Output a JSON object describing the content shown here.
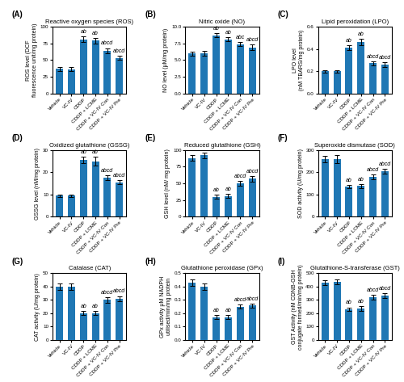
{
  "chart_data": [
    {
      "type": "bar",
      "label": "(A)",
      "title": "Reactive oxygen species (ROS)",
      "ylabel": "ROS level (DCF\nfluorescence unit/mg protein)",
      "categories": [
        "Vehicle",
        "VC-IV",
        "CDDP",
        "CDDP + LCME",
        "CDDP + VC-IV Con",
        "CDDP + VC-IV Pre"
      ],
      "values": [
        37,
        36,
        81,
        79,
        64,
        53
      ],
      "errors": [
        3,
        3,
        4,
        4,
        4,
        3
      ],
      "ylim": [
        0,
        100
      ],
      "yticks": [
        0,
        25,
        50,
        75,
        100
      ],
      "annotations": [
        {
          "category": "CDDP",
          "text": "ab"
        },
        {
          "category": "CDDP + LCME",
          "text": "ab"
        },
        {
          "category": "CDDP + VC-IV Con",
          "text": "abcd"
        },
        {
          "category": "CDDP + VC-IV Pre",
          "text": "abcd"
        }
      ]
    },
    {
      "type": "bar",
      "label": "(B)",
      "title": "Nitric oxide (NO)",
      "ylabel": "NO level (μM/mg protein)",
      "categories": [
        "Vehicle",
        "VC-IV",
        "CDDP",
        "CDDP + LCME",
        "CDDP + VC-IV Con",
        "CDDP + VC-IV Pre"
      ],
      "values": [
        6.0,
        6.0,
        8.7,
        8.1,
        7.4,
        6.9
      ],
      "errors": [
        0.3,
        0.4,
        0.3,
        0.3,
        0.3,
        0.4
      ],
      "ylim": [
        0.0,
        10.0
      ],
      "yticks": [
        0.0,
        2.5,
        5.0,
        7.5,
        10.0
      ],
      "annotations": [
        {
          "category": "CDDP",
          "text": "ab"
        },
        {
          "category": "CDDP + LCME",
          "text": "ab"
        },
        {
          "category": "CDDP + VC-IV Con",
          "text": "abc"
        },
        {
          "category": "CDDP + VC-IV Pre",
          "text": "abcd"
        }
      ]
    },
    {
      "type": "bar",
      "label": "(C)",
      "title": "Lipid peroxidation (LPO)",
      "ylabel": "LPO level\n(nM TBARS/mg protein)",
      "categories": [
        "Vehicle",
        "VC-IV",
        "CDDP",
        "CDDP + LCME",
        "CDDP + VC-IV Con",
        "CDDP + VC-IV Pre"
      ],
      "values": [
        0.2,
        0.2,
        0.41,
        0.46,
        0.27,
        0.26
      ],
      "errors": [
        0.01,
        0.01,
        0.02,
        0.03,
        0.02,
        0.02
      ],
      "ylim": [
        0.0,
        0.6
      ],
      "yticks": [
        0.0,
        0.2,
        0.4,
        0.6
      ],
      "annotations": [
        {
          "category": "CDDP",
          "text": "ab"
        },
        {
          "category": "CDDP + LCME",
          "text": "ab"
        },
        {
          "category": "CDDP + VC-IV Con",
          "text": "abcd"
        },
        {
          "category": "CDDP + VC-IV Pre",
          "text": "abcd"
        }
      ]
    },
    {
      "type": "bar",
      "label": "(D)",
      "title": "Oxidized glutathione (GSSG)",
      "ylabel": "GSSG level (nM/mg protein)",
      "categories": [
        "Vehicle",
        "VC-IV",
        "CDDP",
        "CDDP + LCME",
        "CDDP + VC-IV Con",
        "CDDP + VC-IV Pre"
      ],
      "values": [
        9.5,
        9.5,
        25.5,
        25.0,
        17.5,
        15.5
      ],
      "errors": [
        0.5,
        0.5,
        1.5,
        2.0,
        1.0,
        1.0
      ],
      "ylim": [
        0,
        30
      ],
      "yticks": [
        0,
        10,
        20,
        30
      ],
      "annotations": [
        {
          "category": "CDDP",
          "text": "ab"
        },
        {
          "category": "CDDP + LCME",
          "text": "ab"
        },
        {
          "category": "CDDP + VC-IV Con",
          "text": "abcd"
        },
        {
          "category": "CDDP + VC-IV Pre",
          "text": "abcd"
        }
      ]
    },
    {
      "type": "bar",
      "label": "(E)",
      "title": "Reduced glutathione (GSH)",
      "ylabel": "GSH level (nM/ mg protein)",
      "categories": [
        "Vehicle",
        "VC-IV",
        "CDDP",
        "CDDP + LCME",
        "CDDP + VC-IV Con",
        "CDDP + VC-IV Pre"
      ],
      "values": [
        88,
        92,
        30,
        31,
        50,
        57
      ],
      "errors": [
        4,
        4,
        3,
        3,
        4,
        4
      ],
      "ylim": [
        0,
        100
      ],
      "yticks": [
        0,
        25,
        50,
        75,
        100
      ],
      "annotations": [
        {
          "category": "CDDP",
          "text": "ab"
        },
        {
          "category": "CDDP + LCME",
          "text": "ab"
        },
        {
          "category": "CDDP + VC-IV Con",
          "text": "abcd"
        },
        {
          "category": "CDDP + VC-IV Pre",
          "text": "abcd"
        }
      ]
    },
    {
      "type": "bar",
      "label": "(F)",
      "title": "Superoxide dismutase (SOD)",
      "ylabel": "SOD activity (U/mg protein)",
      "categories": [
        "Vehicle",
        "VC-IV",
        "CDDP",
        "CDDP + LCME",
        "CDDP + VC-IV Con",
        "CDDP + VC-IV Pre"
      ],
      "values": [
        260,
        258,
        135,
        138,
        180,
        205
      ],
      "errors": [
        15,
        18,
        8,
        8,
        10,
        12
      ],
      "ylim": [
        0,
        300
      ],
      "yticks": [
        0,
        100,
        200,
        300
      ],
      "annotations": [
        {
          "category": "CDDP",
          "text": "ab"
        },
        {
          "category": "CDDP + LCME",
          "text": "ab"
        },
        {
          "category": "CDDP + VC-IV Con",
          "text": "abcd"
        },
        {
          "category": "CDDP + VC-IV Pre",
          "text": "abcd"
        }
      ]
    },
    {
      "type": "bar",
      "label": "(G)",
      "title": "Catalase (CAT)",
      "ylabel": "CAT activity (U/mg protein)",
      "categories": [
        "Vehicle",
        "VC-IV",
        "CDDP",
        "CDDP + LCME",
        "CDDP + VC-IV Con",
        "CDDP + VC-IV Pre"
      ],
      "values": [
        40,
        40,
        20,
        20,
        30,
        31
      ],
      "errors": [
        2.5,
        2.5,
        1.5,
        1.5,
        2.0,
        2.0
      ],
      "ylim": [
        0,
        50
      ],
      "yticks": [
        0,
        10,
        20,
        30,
        40,
        50
      ],
      "annotations": [
        {
          "category": "CDDP",
          "text": "ab"
        },
        {
          "category": "CDDP + LCME",
          "text": "ab"
        },
        {
          "category": "CDDP + VC-IV Con",
          "text": "abcd"
        },
        {
          "category": "CDDP + VC-IV Pre",
          "text": "abcd"
        }
      ]
    },
    {
      "type": "bar",
      "label": "(H)",
      "title": "Glutathione peroxidase (GPx)",
      "ylabel": "GPx activity μM NADPH\nutilised/min/mg protein",
      "categories": [
        "Vehicle",
        "VC-IV",
        "CDDP",
        "CDDP + LCME",
        "CDDP + VC-IV Con",
        "CDDP + VC-IV Pre"
      ],
      "values": [
        0.43,
        0.4,
        0.17,
        0.17,
        0.25,
        0.26
      ],
      "errors": [
        0.025,
        0.025,
        0.015,
        0.015,
        0.015,
        0.015
      ],
      "ylim": [
        0.0,
        0.5
      ],
      "yticks": [
        0.0,
        0.1,
        0.2,
        0.3,
        0.4,
        0.5
      ],
      "annotations": [
        {
          "category": "CDDP",
          "text": "ab"
        },
        {
          "category": "CDDP + LCME",
          "text": "ab"
        },
        {
          "category": "CDDP + VC-IV Con",
          "text": "abcd"
        },
        {
          "category": "CDDP + VC-IV Pre",
          "text": "abcd"
        }
      ]
    },
    {
      "type": "bar",
      "label": "(I)",
      "title": "Glutathione-S-transferase (GST)",
      "ylabel": "GST Activity (nM CDNB-GSH\nconjugate formed/min/mg protein)",
      "categories": [
        "Vehicle",
        "VC-IV",
        "CDDP",
        "CDDP + LCME",
        "CDDP + VC-IV Con",
        "CDDP + VC-IV Pre"
      ],
      "values": [
        430,
        435,
        230,
        235,
        320,
        335
      ],
      "errors": [
        20,
        20,
        15,
        20,
        18,
        18
      ],
      "ylim": [
        0,
        500
      ],
      "yticks": [
        0,
        100,
        200,
        300,
        400,
        500
      ],
      "annotations": [
        {
          "category": "CDDP",
          "text": "ab"
        },
        {
          "category": "CDDP + LCME",
          "text": "ab"
        },
        {
          "category": "CDDP + VC-IV Con",
          "text": "abcd"
        },
        {
          "category": "CDDP + VC-IV Pre",
          "text": "abcd"
        }
      ]
    }
  ]
}
